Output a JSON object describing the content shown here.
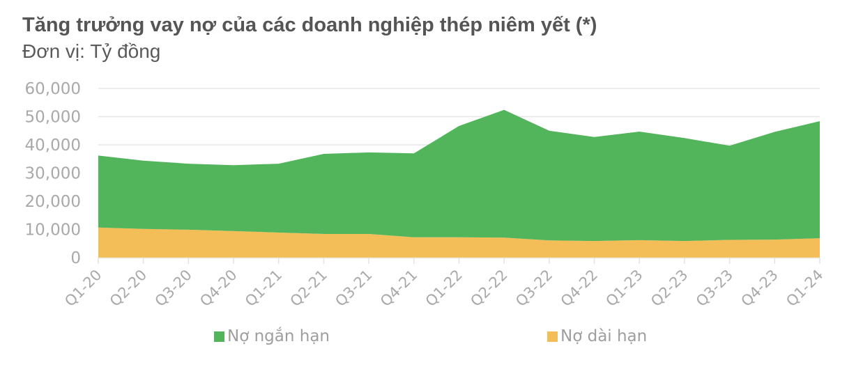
{
  "header": {
    "title": "Tăng trưởng vay nợ của các doanh nghiệp thép niêm yết (*)",
    "subtitle": "Đơn vị: Tỷ đồng"
  },
  "legend": [
    {
      "label": "Nợ ngắn hạn",
      "color": "#53B55B"
    },
    {
      "label": "Nợ dài hạn",
      "color": "#F3BE58"
    }
  ],
  "chart_data": {
    "type": "area",
    "stacked": true,
    "title": "Tăng trưởng vay nợ của các doanh nghiệp thép niêm yết (*)",
    "subtitle": "Đơn vị: Tỷ đồng",
    "xlabel": "",
    "ylabel": "",
    "categories": [
      "Q1-20",
      "Q2-20",
      "Q3-20",
      "Q4-20",
      "Q1-21",
      "Q2-21",
      "Q3-21",
      "Q4-21",
      "Q1-22",
      "Q2-22",
      "Q3-22",
      "Q4-22",
      "Q1-23",
      "Q2-23",
      "Q3-23",
      "Q4-23",
      "Q1-24"
    ],
    "series": [
      {
        "name": "Nợ dài hạn",
        "color": "#F3BE58",
        "values": [
          10700,
          10200,
          9900,
          9400,
          8900,
          8400,
          8400,
          7200,
          7200,
          7100,
          6100,
          5900,
          6200,
          5900,
          6300,
          6400,
          6900
        ]
      },
      {
        "name": "Nợ ngắn hạn",
        "color": "#53B55B",
        "values": [
          25500,
          24200,
          23400,
          23400,
          24400,
          28400,
          28900,
          29800,
          39500,
          45300,
          38900,
          36900,
          38500,
          36500,
          33400,
          38200,
          41500
        ]
      }
    ],
    "totals": [
      36200,
      34400,
      33300,
      32800,
      33300,
      36800,
      37300,
      37000,
      46700,
      52400,
      45000,
      42800,
      44700,
      42400,
      39700,
      44600,
      48400
    ],
    "yticks": [
      "0",
      "10,000",
      "20,000",
      "30,000",
      "40,000",
      "50,000",
      "60,000"
    ],
    "ylim": [
      0,
      60000
    ],
    "grid": true,
    "legend_position": "bottom"
  }
}
